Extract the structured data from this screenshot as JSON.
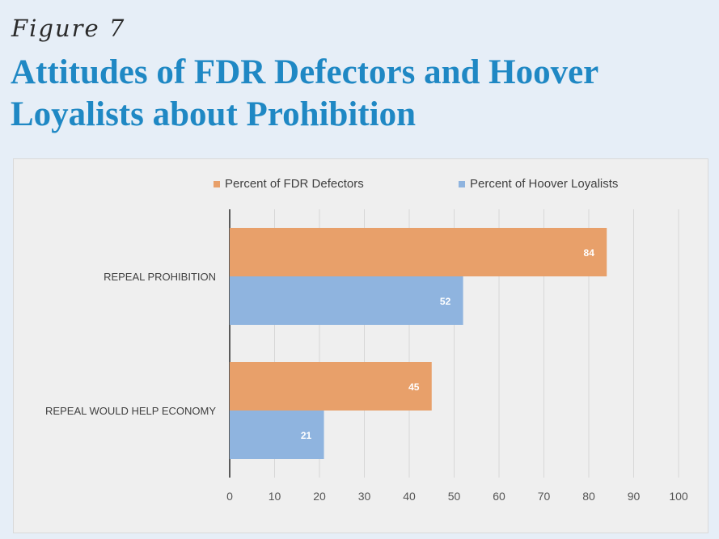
{
  "figure_label": "Figure 7",
  "figure_title": "Attitudes of FDR Defectors and Hoover Loyalists about Prohibition",
  "colors": {
    "fdr": "#e8a06a",
    "hoover": "#8fb4df",
    "axis": "#5a5a5a",
    "grid": "#d7d7d7"
  },
  "chart_data": {
    "type": "bar",
    "orientation": "horizontal",
    "categories": [
      "REPEAL PROHIBITION",
      "REPEAL WOULD HELP ECONOMY"
    ],
    "series": [
      {
        "name": "Percent of FDR Defectors",
        "values": [
          84,
          45
        ],
        "color": "#e8a06a"
      },
      {
        "name": "Percent of Hoover Loyalists",
        "values": [
          52,
          21
        ],
        "color": "#8fb4df"
      }
    ],
    "xlim": [
      0,
      100
    ],
    "xticks": [
      0,
      10,
      20,
      30,
      40,
      50,
      60,
      70,
      80,
      90,
      100
    ],
    "data_labels": true,
    "grid": "vertical",
    "legend_position": "top"
  }
}
